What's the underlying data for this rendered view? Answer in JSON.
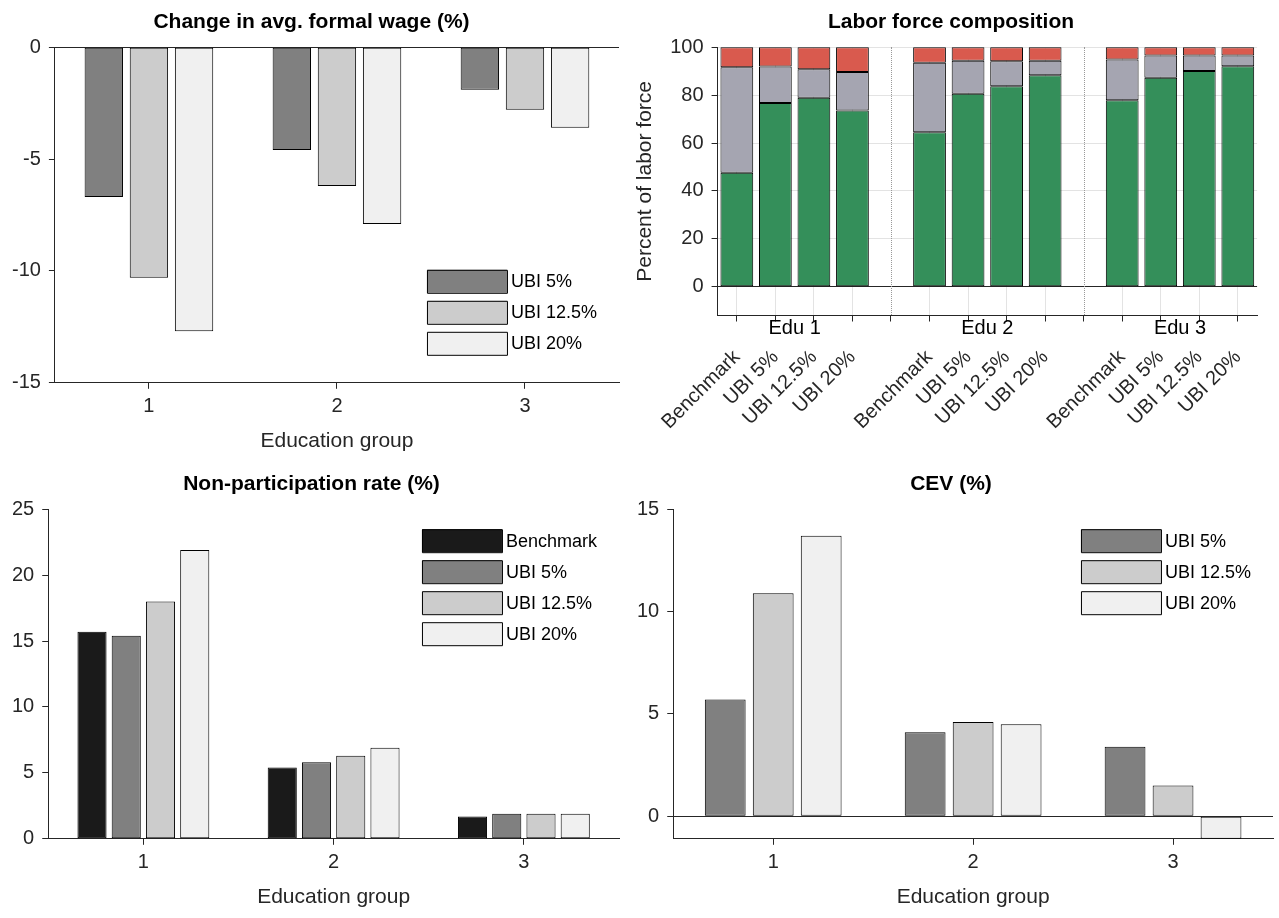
{
  "chart_data": [
    {
      "type": "bar",
      "title": "Change in avg. formal wage (%)",
      "xlabel": "Education group",
      "categories": [
        "1",
        "2",
        "3"
      ],
      "ylim": [
        -15,
        0
      ],
      "yticks": [
        -15,
        -10,
        -5,
        0
      ],
      "legend": "bottom right",
      "series": [
        {
          "name": "UBI 5%",
          "color": "#808080",
          "values": [
            -6.7,
            -4.6,
            -1.9
          ]
        },
        {
          "name": "UBI 12.5%",
          "color": "#cccccc",
          "values": [
            -10.3,
            -6.2,
            -2.8
          ]
        },
        {
          "name": "UBI 20%",
          "color": "#f0f0f0",
          "values": [
            -12.7,
            -7.9,
            -3.6
          ]
        }
      ]
    },
    {
      "type": "bar",
      "title": "Labor force composition",
      "ylabel": "Percent of labor force",
      "stacked": true,
      "grid": true,
      "ylim": [
        -12,
        100
      ],
      "yticks": [
        0,
        20,
        40,
        60,
        80,
        100
      ],
      "categories": [
        "Benchmark",
        "UBI 5%",
        "UBI 12.5%",
        "UBI 20%",
        null,
        "Benchmark",
        "UBI 5%",
        "UBI 12.5%",
        "UBI 20%",
        null,
        "Benchmark",
        "UBI 5%",
        "UBI 12.5%",
        "UBI 20%"
      ],
      "annotations": [
        "Edu 1",
        "Edu 2",
        "Edu 3"
      ],
      "series": [
        {
          "color": "#348f5a",
          "values": [
            47.6,
            76.7,
            78.9,
            73.6,
            null,
            64.5,
            80.6,
            83.7,
            88.3,
            null,
            77.9,
            87.2,
            90.1,
            92.0
          ]
        },
        {
          "color": "#a5a5b1",
          "values": [
            44.0,
            15.2,
            11.9,
            16.0,
            null,
            29.0,
            13.7,
            10.4,
            6.0,
            null,
            17.0,
            9.3,
            6.4,
            4.5
          ]
        },
        {
          "color": "#d95a4e",
          "values": [
            8.4,
            8.1,
            9.2,
            10.4,
            null,
            6.5,
            5.7,
            5.9,
            5.7,
            null,
            5.1,
            3.5,
            3.5,
            3.5
          ]
        }
      ]
    },
    {
      "type": "bar",
      "title": "Non-participation rate (%)",
      "xlabel": "Education group",
      "categories": [
        "1",
        "2",
        "3"
      ],
      "ylim": [
        0,
        25
      ],
      "yticks": [
        0,
        5,
        10,
        15,
        20,
        25
      ],
      "legend": "top right",
      "series": [
        {
          "name": "Benchmark",
          "color": "#1a1a1a",
          "values": [
            15.7,
            5.4,
            1.7
          ]
        },
        {
          "name": "UBI 5%",
          "color": "#808080",
          "values": [
            15.4,
            5.8,
            1.9
          ]
        },
        {
          "name": "UBI 12.5%",
          "color": "#cccccc",
          "values": [
            18.0,
            6.3,
            1.9
          ]
        },
        {
          "name": "UBI 20%",
          "color": "#f0f0f0",
          "values": [
            21.9,
            6.9,
            1.9
          ]
        }
      ]
    },
    {
      "type": "bar",
      "title": "CEV (%)",
      "xlabel": "Education group",
      "categories": [
        "1",
        "2",
        "3"
      ],
      "ylim": [
        -1.1,
        15
      ],
      "yticks": [
        0,
        5,
        10,
        15
      ],
      "legend": "top right",
      "series": [
        {
          "name": "UBI 5%",
          "color": "#808080",
          "values": [
            5.7,
            4.1,
            3.4
          ]
        },
        {
          "name": "UBI 12.5%",
          "color": "#cccccc",
          "values": [
            10.9,
            4.6,
            1.5
          ]
        },
        {
          "name": "UBI 20%",
          "color": "#f0f0f0",
          "values": [
            13.7,
            4.5,
            -1.1
          ]
        }
      ]
    }
  ]
}
